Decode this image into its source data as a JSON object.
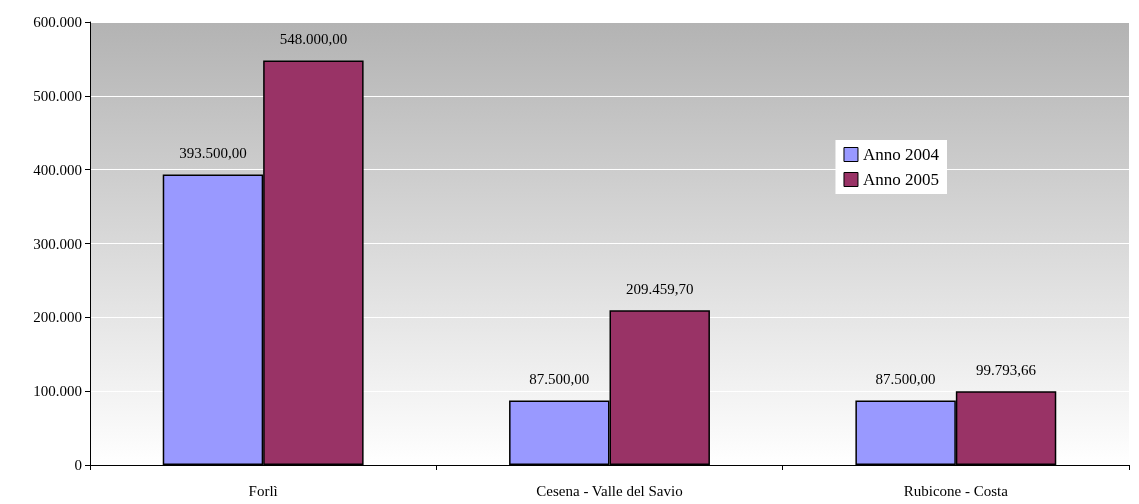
{
  "chart_data": {
    "type": "bar",
    "categories": [
      "Forlì",
      "Cesena - Valle del Savio",
      "Rubicone - Costa"
    ],
    "series": [
      {
        "name": "Anno 2004",
        "color": "#9999ff",
        "values": [
          393500,
          87500,
          87500
        ],
        "value_labels": [
          "393.500,00",
          "87.500,00",
          "87.500,00"
        ]
      },
      {
        "name": "Anno 2005",
        "color": "#993366",
        "values": [
          548000,
          209459.7,
          99793.66
        ],
        "value_labels": [
          "548.000,00",
          "209.459,70",
          "99.793,66"
        ]
      }
    ],
    "ylim": [
      0,
      600000
    ],
    "yticks": [
      {
        "value": 0,
        "label": "0"
      },
      {
        "value": 100000,
        "label": "100.000"
      },
      {
        "value": 200000,
        "label": "200.000"
      },
      {
        "value": 300000,
        "label": "300.000"
      },
      {
        "value": 400000,
        "label": "400.000"
      },
      {
        "value": 500000,
        "label": "500.000"
      },
      {
        "value": 600000,
        "label": "600.000"
      }
    ],
    "grid": "y",
    "legend": "top right"
  }
}
